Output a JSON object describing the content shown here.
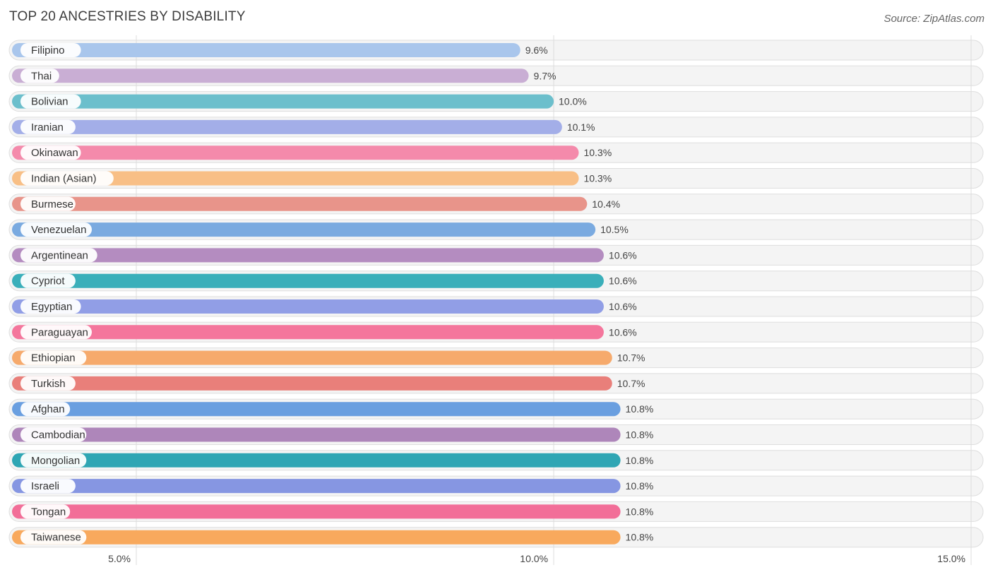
{
  "title": "TOP 20 ANCESTRIES BY DISABILITY",
  "source": "Source: ZipAtlas.com",
  "chart_data": {
    "type": "bar",
    "orientation": "horizontal",
    "title": "TOP 20 ANCESTRIES BY DISABILITY",
    "xlabel": "",
    "ylabel": "",
    "xlim": [
      3.5,
      15.0
    ],
    "ticks": [
      5.0,
      10.0,
      15.0
    ],
    "tick_labels": [
      "5.0%",
      "10.0%",
      "15.0%"
    ],
    "categories": [
      "Filipino",
      "Thai",
      "Bolivian",
      "Iranian",
      "Okinawan",
      "Indian (Asian)",
      "Burmese",
      "Venezuelan",
      "Argentinean",
      "Cypriot",
      "Egyptian",
      "Paraguayan",
      "Ethiopian",
      "Turkish",
      "Afghan",
      "Cambodian",
      "Mongolian",
      "Israeli",
      "Tongan",
      "Taiwanese"
    ],
    "values": [
      9.6,
      9.7,
      10.0,
      10.1,
      10.3,
      10.3,
      10.4,
      10.5,
      10.6,
      10.6,
      10.6,
      10.6,
      10.7,
      10.7,
      10.8,
      10.8,
      10.8,
      10.8,
      10.8,
      10.8
    ],
    "value_labels": [
      "9.6%",
      "9.7%",
      "10.0%",
      "10.1%",
      "10.3%",
      "10.3%",
      "10.4%",
      "10.5%",
      "10.6%",
      "10.6%",
      "10.6%",
      "10.6%",
      "10.7%",
      "10.7%",
      "10.8%",
      "10.8%",
      "10.8%",
      "10.8%",
      "10.8%",
      "10.8%"
    ],
    "colors": [
      "#a9c6ec",
      "#c9aed4",
      "#6cbfcc",
      "#a3aee8",
      "#f48aab",
      "#f8bf86",
      "#e8948a",
      "#7aaae0",
      "#b48cc0",
      "#3aafba",
      "#919ee6",
      "#f4769c",
      "#f6aa6c",
      "#e97f7a",
      "#6a9fe0",
      "#ae86ba",
      "#2fa6b4",
      "#8696e2",
      "#f26e98",
      "#f8a95d"
    ]
  }
}
